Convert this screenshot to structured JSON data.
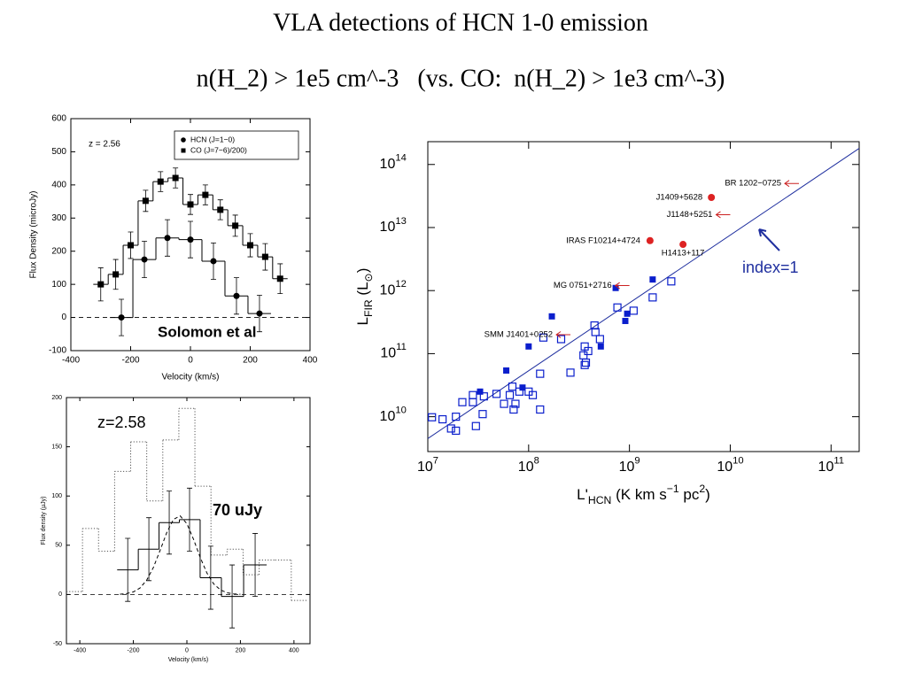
{
  "title": "VLA detections of HCN 1-0 emission",
  "subtitle": "n(H_2) > 1e5 cm^-3   (vs. CO:  n(H_2) > 1e3 cm^-3)",
  "chart_data": [
    {
      "type": "step",
      "xlabel": "Velocity (km/s)",
      "ylabel": "Flux Density (microJy)",
      "annotations": [
        "z = 2.56",
        "Solomon et al"
      ],
      "xlim": [
        -400,
        400
      ],
      "xticks": [
        -400,
        -200,
        0,
        200,
        400
      ],
      "ylim": [
        -100,
        600
      ],
      "yticks": [
        -100,
        0,
        100,
        200,
        300,
        400,
        500,
        600
      ],
      "zero_line": true,
      "legend": "upper right",
      "series": [
        {
          "name": "HCN (J=1−0)",
          "color": "#000000",
          "marker": "circle",
          "x": [
            -231,
            -154,
            -77,
            0,
            77,
            154,
            231
          ],
          "values": [
            0,
            175,
            240,
            235,
            170,
            65,
            12
          ],
          "errors": [
            55,
            55,
            55,
            55,
            55,
            55,
            55
          ]
        },
        {
          "name": "CO (J=7−6)/200)",
          "color": "#000000",
          "marker": "square",
          "x": [
            -300,
            -250,
            -200,
            -150,
            -100,
            -50,
            0,
            50,
            100,
            150,
            200,
            250,
            300
          ],
          "values": [
            100,
            130,
            218,
            352,
            410,
            421,
            341,
            370,
            325,
            277,
            218,
            183,
            117
          ],
          "errors": [
            50,
            45,
            40,
            32,
            30,
            30,
            30,
            30,
            30,
            32,
            35,
            40,
            45
          ]
        }
      ]
    },
    {
      "type": "step",
      "xlabel": "Velocity (km/s)",
      "ylabel": "Flux density (µJy)",
      "annotations": [
        "z=2.58",
        "70 uJy"
      ],
      "xlim": [
        -450,
        460
      ],
      "xticks": [
        -400,
        -200,
        0,
        200,
        400
      ],
      "ylim": [
        -50,
        200
      ],
      "yticks": [
        -50,
        0,
        50,
        100,
        150,
        200
      ],
      "zero_line": true,
      "series": [
        {
          "color": "#555555",
          "dash": "dotted",
          "x": [
            -420,
            -360,
            -300,
            -240,
            -180,
            -120,
            -60,
            0,
            60,
            120,
            180,
            240,
            300,
            360,
            420
          ],
          "values": [
            3,
            67,
            44,
            125,
            155,
            95,
            157,
            189,
            110,
            40,
            46,
            20,
            35,
            35,
            -6
          ]
        },
        {
          "color": "#000000",
          "x": [
            -221,
            -142,
            -66,
            10,
            89,
            169,
            255
          ],
          "values": [
            25,
            46,
            73,
            76,
            17,
            -2,
            30
          ],
          "errors": [
            32,
            32,
            32,
            32,
            32,
            32,
            32
          ]
        },
        {
          "color": "#000000",
          "dash": "dashed",
          "kind": "line",
          "x": [
            -250,
            -225,
            -200,
            -175,
            -150,
            -125,
            -100,
            -75,
            -50,
            -25,
            0,
            25,
            50,
            75,
            100,
            125,
            150,
            175,
            200
          ],
          "values": [
            0.3,
            0.9,
            2.6,
            6.6,
            14.6,
            27.5,
            44.8,
            63,
            76.3,
            79.8,
            71.9,
            55.9,
            37.5,
            21.7,
            10.8,
            4.7,
            1.7,
            0.6,
            0.2
          ]
        }
      ]
    },
    {
      "type": "scatter",
      "xscale": "log",
      "yscale": "log",
      "xlabel": [
        {
          "text": "L'"
        },
        {
          "text": "HCN",
          "shift": "sub"
        },
        {
          "text": " (K km s"
        },
        {
          "text": "−1",
          "shift": "sup"
        },
        {
          "text": " pc"
        },
        {
          "text": "2",
          "shift": "sup"
        },
        {
          "text": ")"
        }
      ],
      "ylabel": [
        {
          "text": "L"
        },
        {
          "text": "FIR",
          "shift": "sub"
        },
        {
          "text": " (L"
        },
        {
          "text": "⊙",
          "shift": "sub"
        },
        {
          "text": ")"
        }
      ],
      "annotations": [
        "index=1"
      ],
      "xlim": [
        10000000,
        190000000000
      ],
      "xticks": [
        {
          "value": 10000000,
          "label": "10",
          "exponent": "7"
        },
        {
          "value": 100000000,
          "label": "10",
          "exponent": "8"
        },
        {
          "value": 1000000000,
          "label": "10",
          "exponent": "9"
        },
        {
          "value": 10000000000,
          "label": "10",
          "exponent": "10"
        },
        {
          "value": 100000000000,
          "label": "10",
          "exponent": "11"
        }
      ],
      "ylim": [
        2800000000,
        230000000000000
      ],
      "yticks": [
        {
          "value": 10000000000,
          "label": "10",
          "exponent": "10"
        },
        {
          "value": 100000000000,
          "label": "10",
          "exponent": "11"
        },
        {
          "value": 1000000000000,
          "label": "10",
          "exponent": "12"
        },
        {
          "value": 10000000000000,
          "label": "10",
          "exponent": "13"
        },
        {
          "value": 100000000000000,
          "label": "10",
          "exponent": "14"
        }
      ],
      "series": [
        {
          "color": "#1f2f9f",
          "kind": "line",
          "x": [
            10000000,
            190000000000
          ],
          "values": [
            4500000000,
            180000000000000
          ]
        },
        {
          "color": "#0a1ecc",
          "marker": "square",
          "x": [
            1700000000.0,
            730000000.0,
            950000000.0,
            910000000.0,
            170000000.0,
            100000000.0,
            520000000.0,
            60000000.0,
            33000000.0,
            87000000.0
          ],
          "values": [
            1500000000000.0,
            1100000000000.0,
            430000000000.0,
            330000000000.0,
            390000000000.0,
            130000000000.0,
            130000000000.0,
            54000000000.0,
            25000000000.0,
            29000000000.0
          ]
        },
        {
          "color": "#0a1ecc",
          "marker": "open-square",
          "x": [
            2600000000.0,
            1700000000.0,
            1100000000.0,
            760000000.0,
            460000000.0,
            450000000.0,
            360000000.0,
            510000000.0,
            390000000.0,
            350000000.0,
            370000000.0,
            360000000.0,
            210000000.0,
            140000000.0,
            130000000.0,
            260000000.0,
            100000000.0,
            81000000.0,
            110000000.0,
            69000000.0,
            65000000.0,
            74000000.0,
            57000000.0,
            71000000.0,
            48000000.0,
            36000000.0,
            28000000.0,
            35000000.0,
            22000000.0,
            28000000.0,
            30000000.0,
            19000000.0,
            14000000.0,
            11000000.0,
            19000000.0,
            17000000.0,
            130000000.0
          ],
          "values": [
            1400000000000.0,
            780000000000.0,
            480000000000.0,
            540000000000.0,
            220000000000.0,
            280000000000.0,
            130000000000.0,
            170000000000.0,
            110000000000.0,
            94000000000.0,
            72000000000.0,
            66000000000.0,
            170000000000.0,
            180000000000.0,
            48000000000.0,
            50000000000.0,
            25000000000.0,
            25000000000.0,
            22000000000.0,
            30000000000.0,
            22000000000.0,
            16000000000.0,
            16000000000.0,
            13000000000.0,
            23000000000.0,
            21000000000.0,
            22000000000.0,
            11000000000.0,
            17000000000.0,
            17000000000.0,
            7100000000.0,
            10000000000.0,
            9100000000.0,
            9800000000.0,
            6000000000.0,
            6500000000.0,
            13000000000.0
          ]
        },
        {
          "color": "#dd2222",
          "marker": "circle",
          "x": [
            6500000000.0,
            1600000000.0,
            3400000000.0
          ],
          "values": [
            30000000000000.0,
            6200000000000.0,
            5400000000000.0
          ],
          "labels": [
            "J1409+5628",
            "IRAS F10214+4724",
            "H1413+117"
          ]
        },
        {
          "color": "#cc2222",
          "marker": "arrow-left",
          "x": [
            48000000000.0,
            10000000000.0,
            1000000000.0,
            260000000.0
          ],
          "values": [
            50000000000000.0,
            16000000000000.0,
            1200000000000.0,
            200000000000.0
          ],
          "labels": [
            "BR 1202−0725",
            "J1148+5251",
            "MG 0751+2716",
            "SMM J1401+0252"
          ]
        }
      ]
    }
  ]
}
